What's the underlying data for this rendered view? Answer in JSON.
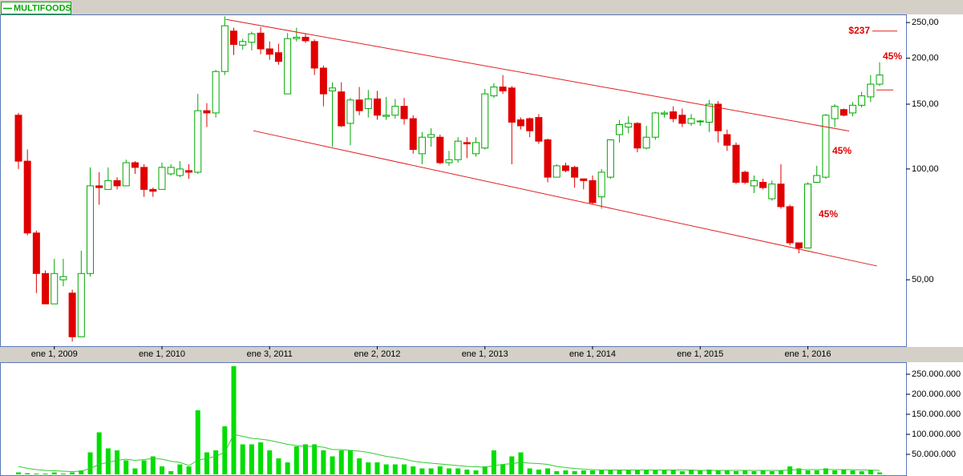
{
  "chart_data": [
    {
      "type": "candlestick",
      "categories": [
        null,
        null,
        null,
        null,
        "ene 1, 2009",
        null,
        null,
        null,
        null,
        null,
        null,
        null,
        null,
        null,
        null,
        null,
        "ene 1, 2010",
        null,
        null,
        null,
        null,
        null,
        null,
        null,
        null,
        null,
        null,
        null,
        "ene 3, 2011",
        null,
        null,
        null,
        null,
        null,
        null,
        null,
        null,
        null,
        null,
        null,
        "ene 2, 2012",
        null,
        null,
        null,
        null,
        null,
        null,
        null,
        null,
        null,
        null,
        null,
        "ene 1, 2013",
        null,
        null,
        null,
        null,
        null,
        null,
        null,
        null,
        null,
        null,
        null,
        "ene 1, 2014",
        null,
        null,
        null,
        null,
        null,
        null,
        null,
        null,
        null,
        null,
        null,
        "ene 1, 2015",
        null,
        null,
        null,
        null,
        null,
        null,
        null,
        null,
        null,
        null,
        null,
        "ene 1, 2016",
        null,
        null,
        null,
        null,
        null,
        null,
        null,
        null
      ],
      "series": [
        {
          "name": "MULTIFOODS",
          "color": "#00a800",
          "down_color": "#e00000",
          "open": [
            140,
            105,
            67,
            52,
            43,
            50,
            46,
            35,
            52,
            90,
            88,
            93,
            90,
            104,
            101,
            88,
            88,
            97,
            96,
            99,
            98,
            144,
            142,
            184,
            237,
            217,
            221,
            234,
            212,
            207,
            160,
            226,
            228,
            222,
            188,
            163,
            162,
            133,
            154,
            146,
            155,
            139,
            140,
            148,
            137,
            110,
            122,
            122,
            104,
            106,
            118,
            110,
            114,
            158,
            167,
            166,
            136,
            137,
            138,
            120,
            95,
            102,
            101,
            94,
            93,
            84,
            95,
            124,
            130,
            133,
            114,
            122,
            141,
            143,
            140,
            133,
            135,
            134,
            150,
            124,
            116,
            98,
            90,
            92,
            83,
            91,
            79,
            63,
            61,
            92,
            95,
            137,
            145,
            142,
            149,
            157,
            170
          ],
          "high": [
            142,
            113,
            68,
            53,
            57,
            57,
            47,
            60,
            101,
            98,
            101,
            95,
            106,
            105,
            103,
            89,
            104,
            103,
            105,
            103,
            160,
            151,
            186,
            260,
            242,
            226,
            236,
            243,
            222,
            219,
            234,
            242,
            233,
            225,
            191,
            172,
            172,
            156,
            167,
            164,
            163,
            157,
            155,
            156,
            140,
            126,
            129,
            124,
            112,
            122,
            122,
            122,
            165,
            171,
            180,
            168,
            138,
            138,
            141,
            121,
            103,
            104,
            102,
            94,
            96,
            100,
            120,
            136,
            139,
            134,
            131,
            143,
            144,
            148,
            146,
            141,
            136,
            154,
            153,
            128,
            118,
            99,
            96,
            94,
            93,
            103,
            80,
            63,
            92,
            102,
            141,
            150,
            146,
            152,
            162,
            180,
            195
          ],
          "low": [
            100,
            66,
            46,
            43,
            43,
            48,
            34,
            35,
            51,
            80,
            88,
            88,
            90,
            97,
            84,
            84,
            88,
            96,
            95,
            94,
            97,
            130,
            138,
            180,
            204,
            211,
            210,
            205,
            198,
            192,
            160,
            222,
            220,
            180,
            148,
            115,
            130,
            116,
            140,
            138,
            136,
            136,
            137,
            132,
            110,
            103,
            115,
            103,
            102,
            104,
            107,
            108,
            113,
            156,
            160,
            103,
            128,
            122,
            117,
            92,
            95,
            98,
            89,
            88,
            80,
            78,
            94,
            118,
            125,
            111,
            113,
            120,
            138,
            134,
            130,
            131,
            131,
            126,
            118,
            112,
            91,
            91,
            86,
            88,
            82,
            78,
            62,
            59,
            61,
            92,
            94,
            130,
            139,
            139,
            147,
            152,
            168
          ],
          "close": [
            105,
            67,
            52,
            43,
            52,
            51,
            35,
            52,
            90,
            89,
            93,
            90,
            104,
            101,
            88,
            87,
            101,
            101,
            100,
            98,
            144,
            142,
            184,
            245,
            218,
            222,
            233,
            212,
            205,
            196,
            226,
            228,
            223,
            188,
            160,
            166,
            131,
            154,
            144,
            155,
            140,
            140,
            148,
            137,
            113,
            122,
            124,
            104,
            106,
            119,
            117,
            118,
            160,
            167,
            163,
            134,
            131,
            127,
            119,
            95,
            102,
            99,
            95,
            93,
            81,
            98,
            120,
            132,
            133,
            114,
            122,
            142,
            142,
            137,
            133,
            137,
            135,
            150,
            127,
            116,
            92,
            92,
            93,
            89,
            91,
            79,
            63,
            61,
            91,
            96,
            140,
            148,
            140,
            149,
            158,
            170,
            180
          ]
        }
      ],
      "ylim": [
        33,
        263
      ],
      "yticks": [
        {
          "value": 50,
          "label": "50,00"
        },
        {
          "value": 100,
          "label": "100,00"
        },
        {
          "value": 150,
          "label": "150,00"
        },
        {
          "value": 200,
          "label": "200,00"
        },
        {
          "value": 250,
          "label": "250,00"
        }
      ],
      "log_scale": true,
      "trend_lines": [
        {
          "color": "#e02020",
          "x": [
            23.1,
            92.6
          ],
          "y": [
            255,
            126.8
          ]
        },
        {
          "color": "#e02020",
          "x": [
            26.2,
            95.7
          ],
          "y": [
            127,
            54.5
          ]
        }
      ],
      "price_marker": 164,
      "annotations": [
        {
          "text": "$237",
          "value": 237
        },
        {
          "text": "45%"
        },
        {
          "text": "45%"
        },
        {
          "text": "45%"
        }
      ]
    },
    {
      "type": "bar",
      "series": [
        {
          "color": "#00dd00",
          "values": [
            5000000,
            3000000,
            2000000,
            2000000,
            5000000,
            2000000,
            5000000,
            10000000,
            55000000,
            105000000,
            65000000,
            60000000,
            35000000,
            15000000,
            35000000,
            45000000,
            20000000,
            8000000,
            25000000,
            20000000,
            160000000,
            55000000,
            60000000,
            120000000,
            270000000,
            75000000,
            75000000,
            80000000,
            60000000,
            40000000,
            30000000,
            70000000,
            75000000,
            75000000,
            60000000,
            45000000,
            60000000,
            60000000,
            40000000,
            30000000,
            30000000,
            25000000,
            25000000,
            25000000,
            20000000,
            15000000,
            15000000,
            20000000,
            15000000,
            15000000,
            12000000,
            10000000,
            20000000,
            60000000,
            25000000,
            45000000,
            55000000,
            15000000,
            12000000,
            15000000,
            8000000,
            10000000,
            8000000,
            10000000,
            10000000,
            10000000,
            12000000,
            10000000,
            12000000,
            10000000,
            12000000,
            12000000,
            10000000,
            10000000,
            8000000,
            12000000,
            10000000,
            12000000,
            10000000,
            10000000,
            8000000,
            10000000,
            8000000,
            10000000,
            8000000,
            10000000,
            20000000,
            15000000,
            10000000,
            10000000,
            15000000,
            10000000,
            12000000,
            10000000,
            8000000,
            10000000,
            5000000
          ]
        },
        {
          "type": "line",
          "color": "#33cc33",
          "values": [
            20000000,
            15000000,
            12000000,
            10000000,
            9000000,
            8000000,
            7000000,
            8000000,
            15000000,
            25000000,
            30000000,
            35000000,
            38000000,
            35000000,
            37000000,
            40000000,
            38000000,
            33000000,
            30000000,
            22000000,
            35000000,
            40000000,
            45000000,
            55000000,
            100000000,
            95000000,
            90000000,
            88000000,
            85000000,
            80000000,
            75000000,
            72000000,
            70000000,
            70000000,
            68000000,
            62000000,
            62000000,
            60000000,
            58000000,
            55000000,
            50000000,
            45000000,
            42000000,
            38000000,
            33000000,
            30000000,
            28000000,
            26000000,
            24000000,
            22000000,
            20000000,
            19000000,
            18000000,
            22000000,
            25000000,
            27000000,
            30000000,
            28000000,
            27000000,
            25000000,
            20000000,
            17000000,
            15000000,
            13000000,
            12000000,
            11000000,
            11000000,
            11000000,
            11000000,
            11000000,
            11000000,
            11000000,
            11000000,
            11000000,
            11000000,
            11000000,
            10000000,
            10000000,
            10000000,
            10000000,
            10000000,
            10000000,
            10000000,
            10000000,
            10000000,
            10000000,
            11000000,
            12000000,
            12000000,
            12000000,
            12000000,
            12000000,
            12000000,
            12000000,
            11000000,
            11000000,
            10000000
          ]
        }
      ],
      "ylim": [
        0,
        280000000
      ],
      "yticks": [
        {
          "value": 50000000,
          "label": "50.000.000"
        },
        {
          "value": 100000000,
          "label": "100.000.000"
        },
        {
          "value": 150000000,
          "label": "150.000.000"
        },
        {
          "value": 200000000,
          "label": "200.000.000"
        },
        {
          "value": 250000000,
          "label": "250.000.000"
        }
      ]
    }
  ]
}
